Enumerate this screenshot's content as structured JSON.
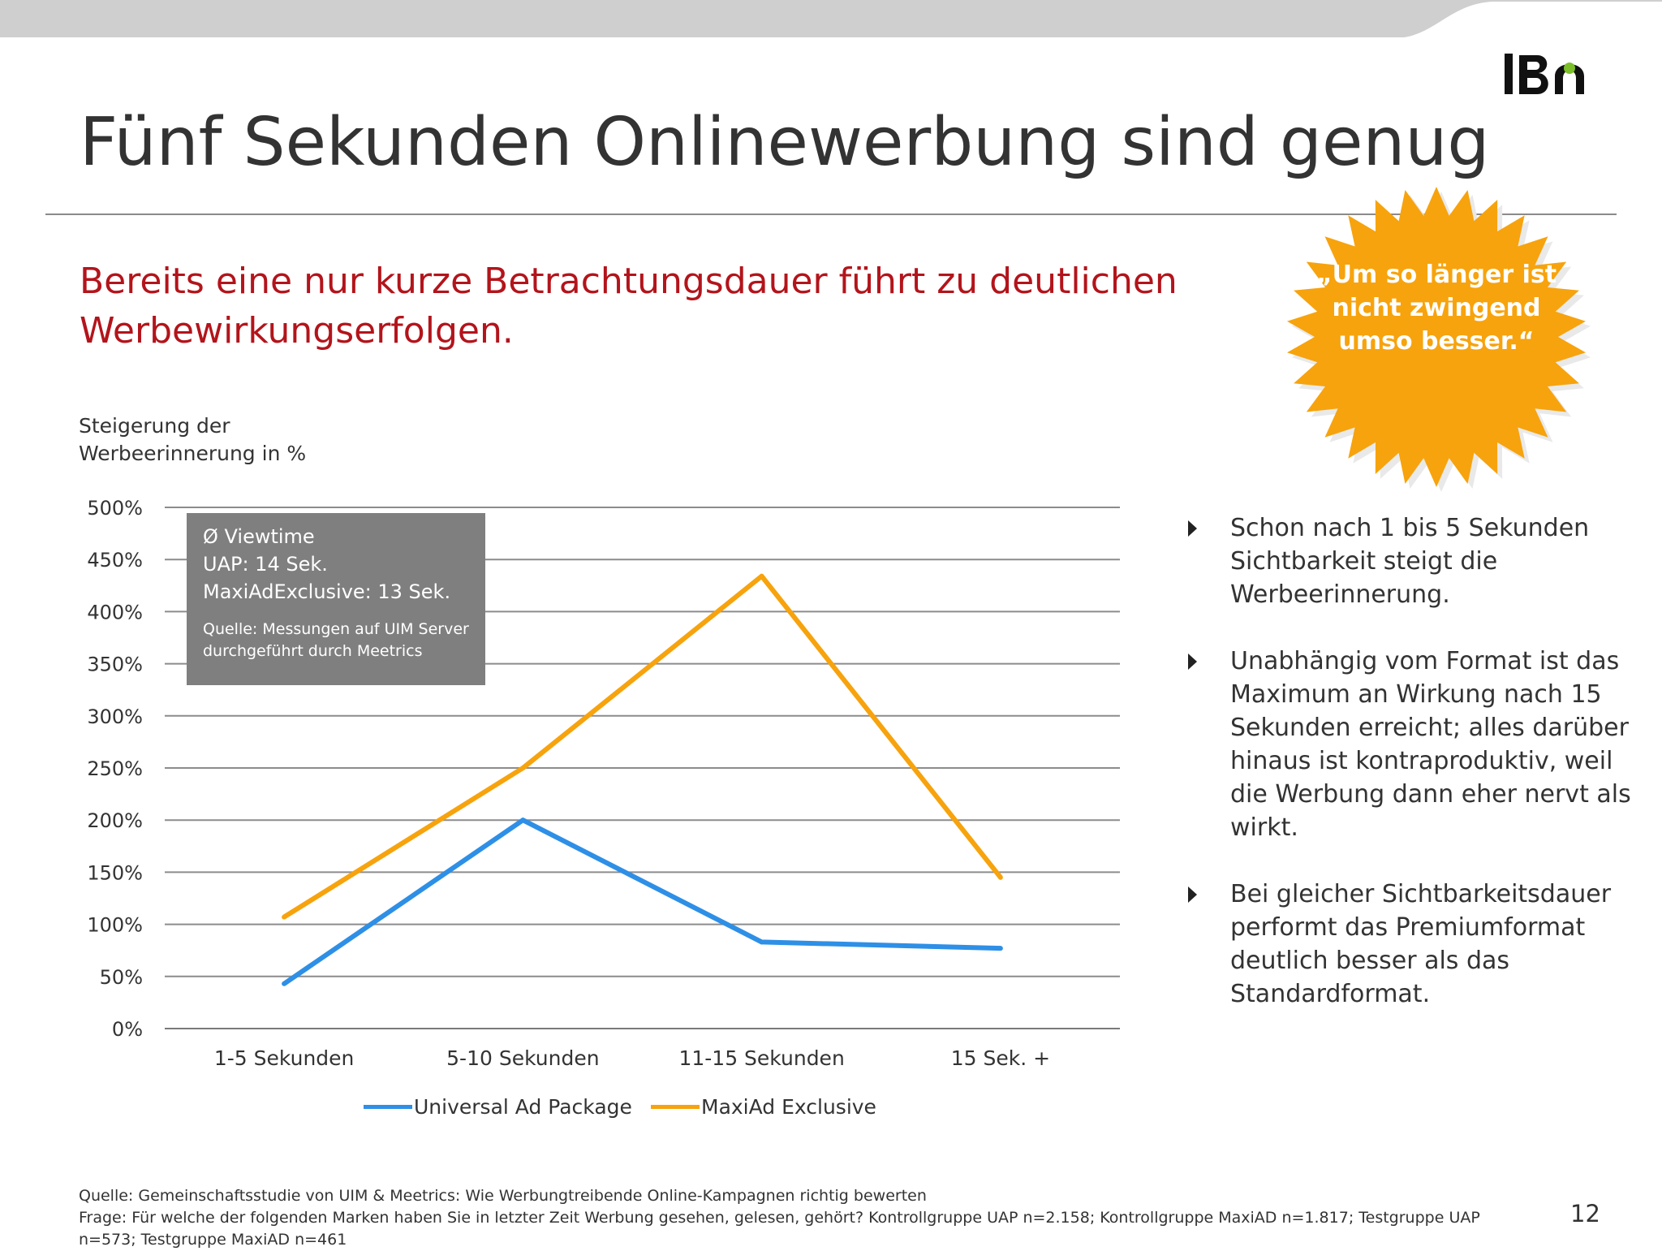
{
  "slide": {
    "title": "Fünf Sekunden Onlinewerbung sind genug",
    "subtitle": "Bereits eine nur kurze Betrachtungsdauer führt zu deutlichen Werbewirkungserfolgen.",
    "burst_quote": "„Um so länger ist nicht zwingend umso besser.“",
    "page_number": "12"
  },
  "infobox": {
    "line1": "Ø Viewtime",
    "line2": "UAP: 14 Sek.",
    "line3": "MaxiAdExclusive: 13 Sek.",
    "source": "Quelle: Messungen auf UIM Server durchgeführt durch Meetrics"
  },
  "bullets": [
    "Schon nach 1 bis 5 Sekunden Sichtbarkeit steigt die Werbeerinnerung.",
    "Unabhängig vom Format ist das Maximum an Wirkung nach 15 Sekunden erreicht; alles darüber hinaus ist kontraproduktiv, weil die Werbung dann eher nervt als wirkt.",
    "Bei gleicher Sichtbarkeitsdauer performt das Premiumformat deutlich besser als das Standardformat."
  ],
  "footer": {
    "line1": "Quelle: Gemeinschaftsstudie von UIM & Meetrics: Wie Werbungtreibende Online-Kampagnen richtig bewerten",
    "line2": "Frage: Für welche der folgenden Marken haben Sie in letzter Zeit Werbung gesehen, gelesen, gehört? Kontrollgruppe UAP n=2.158; Kontrollgruppe MaxiAD n=1.817; Testgruppe UAP n=573; Testgruppe MaxiAD n=461"
  },
  "colors": {
    "title_red": "#b3141b",
    "burst_orange": "#f7a30d",
    "uap_blue": "#2e8fe6",
    "maxiad_orange": "#f7a30d",
    "gridline": "#8c8c8c",
    "infobox_gray": "#7f7f7f",
    "topbar_gray": "#cfcfcf"
  },
  "chart_data": {
    "type": "line",
    "ylabel": "Steigerung der Werbeerinnerung in %",
    "categories": [
      "1-5 Sekunden",
      "5-10 Sekunden",
      "11-15 Sekunden",
      "15 Sek. +"
    ],
    "series": [
      {
        "name": "Universal Ad Package",
        "values": [
          43,
          200,
          83,
          77
        ],
        "color": "#2e8fe6"
      },
      {
        "name": "MaxiAd Exclusive",
        "values": [
          107,
          250,
          434,
          145
        ],
        "color": "#f7a30d"
      }
    ],
    "ylim": [
      0,
      500
    ],
    "yticks": [
      0,
      50,
      100,
      150,
      200,
      250,
      300,
      350,
      400,
      450,
      500
    ],
    "ytick_labels": [
      "0%",
      "50%",
      "100%",
      "150%",
      "200%",
      "250%",
      "300%",
      "350%",
      "400%",
      "450%",
      "500%"
    ],
    "grid": true,
    "legend_position": "bottom"
  }
}
